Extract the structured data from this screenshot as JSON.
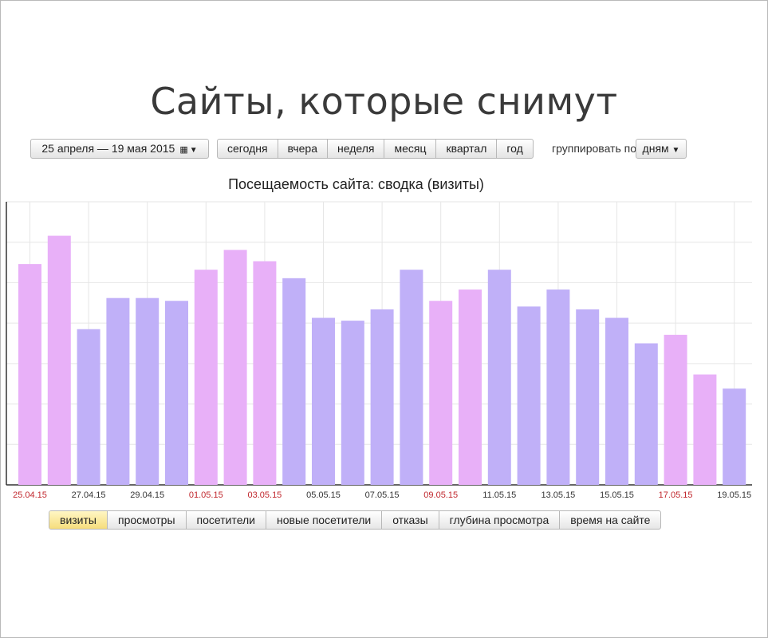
{
  "slide": {
    "title": "Сайты, которые снимут"
  },
  "toolbar": {
    "date_range_label": "25 апреля — 19 мая 2015",
    "calendar_icon": "calendar-icon",
    "periods": [
      "сегодня",
      "вчера",
      "неделя",
      "месяц",
      "квартал",
      "год"
    ],
    "group_by_label": "группировать по",
    "group_by_value": "дням"
  },
  "chart_data": {
    "type": "bar",
    "title": "Посещаемость сайта: сводка (визиты)",
    "categories": [
      "25.04.15",
      "26.04.15",
      "27.04.15",
      "28.04.15",
      "29.04.15",
      "30.04.15",
      "01.05.15",
      "02.05.15",
      "03.05.15",
      "04.05.15",
      "05.05.15",
      "06.05.15",
      "07.05.15",
      "08.05.15",
      "09.05.15",
      "10.05.15",
      "11.05.15",
      "12.05.15",
      "13.05.15",
      "14.05.15",
      "15.05.15",
      "16.05.15",
      "17.05.15",
      "18.05.15",
      "19.05.15"
    ],
    "values": [
      78,
      88,
      55,
      66,
      66,
      65,
      76,
      83,
      79,
      73,
      59,
      58,
      62,
      76,
      65,
      69,
      76,
      63,
      69,
      62,
      59,
      50,
      53,
      39,
      34
    ],
    "weekend_flags": [
      true,
      true,
      false,
      false,
      false,
      false,
      true,
      true,
      true,
      false,
      false,
      false,
      false,
      false,
      true,
      true,
      false,
      false,
      false,
      false,
      false,
      false,
      true,
      true,
      false
    ],
    "tick_labels": [
      "25.04.15",
      "27.04.15",
      "29.04.15",
      "01.05.15",
      "03.05.15",
      "05.05.15",
      "07.05.15",
      "09.05.15",
      "11.05.15",
      "13.05.15",
      "15.05.15",
      "17.05.15",
      "19.05.15"
    ],
    "tick_label_red": [
      true,
      false,
      false,
      true,
      true,
      false,
      false,
      true,
      false,
      false,
      false,
      true,
      false
    ],
    "ylim": [
      0,
      100
    ],
    "grid": true,
    "colors": {
      "weekday": "#c0b0f8",
      "weekend": "#e8b0f8",
      "grid": "#e6e6e6",
      "tick_red": "#c0262c",
      "tick_dark": "#333333"
    }
  },
  "metric_tabs": {
    "items": [
      "визиты",
      "просмотры",
      "посетители",
      "новые посетители",
      "отказы",
      "глубина просмотра",
      "время на сайте"
    ],
    "active": "визиты"
  }
}
